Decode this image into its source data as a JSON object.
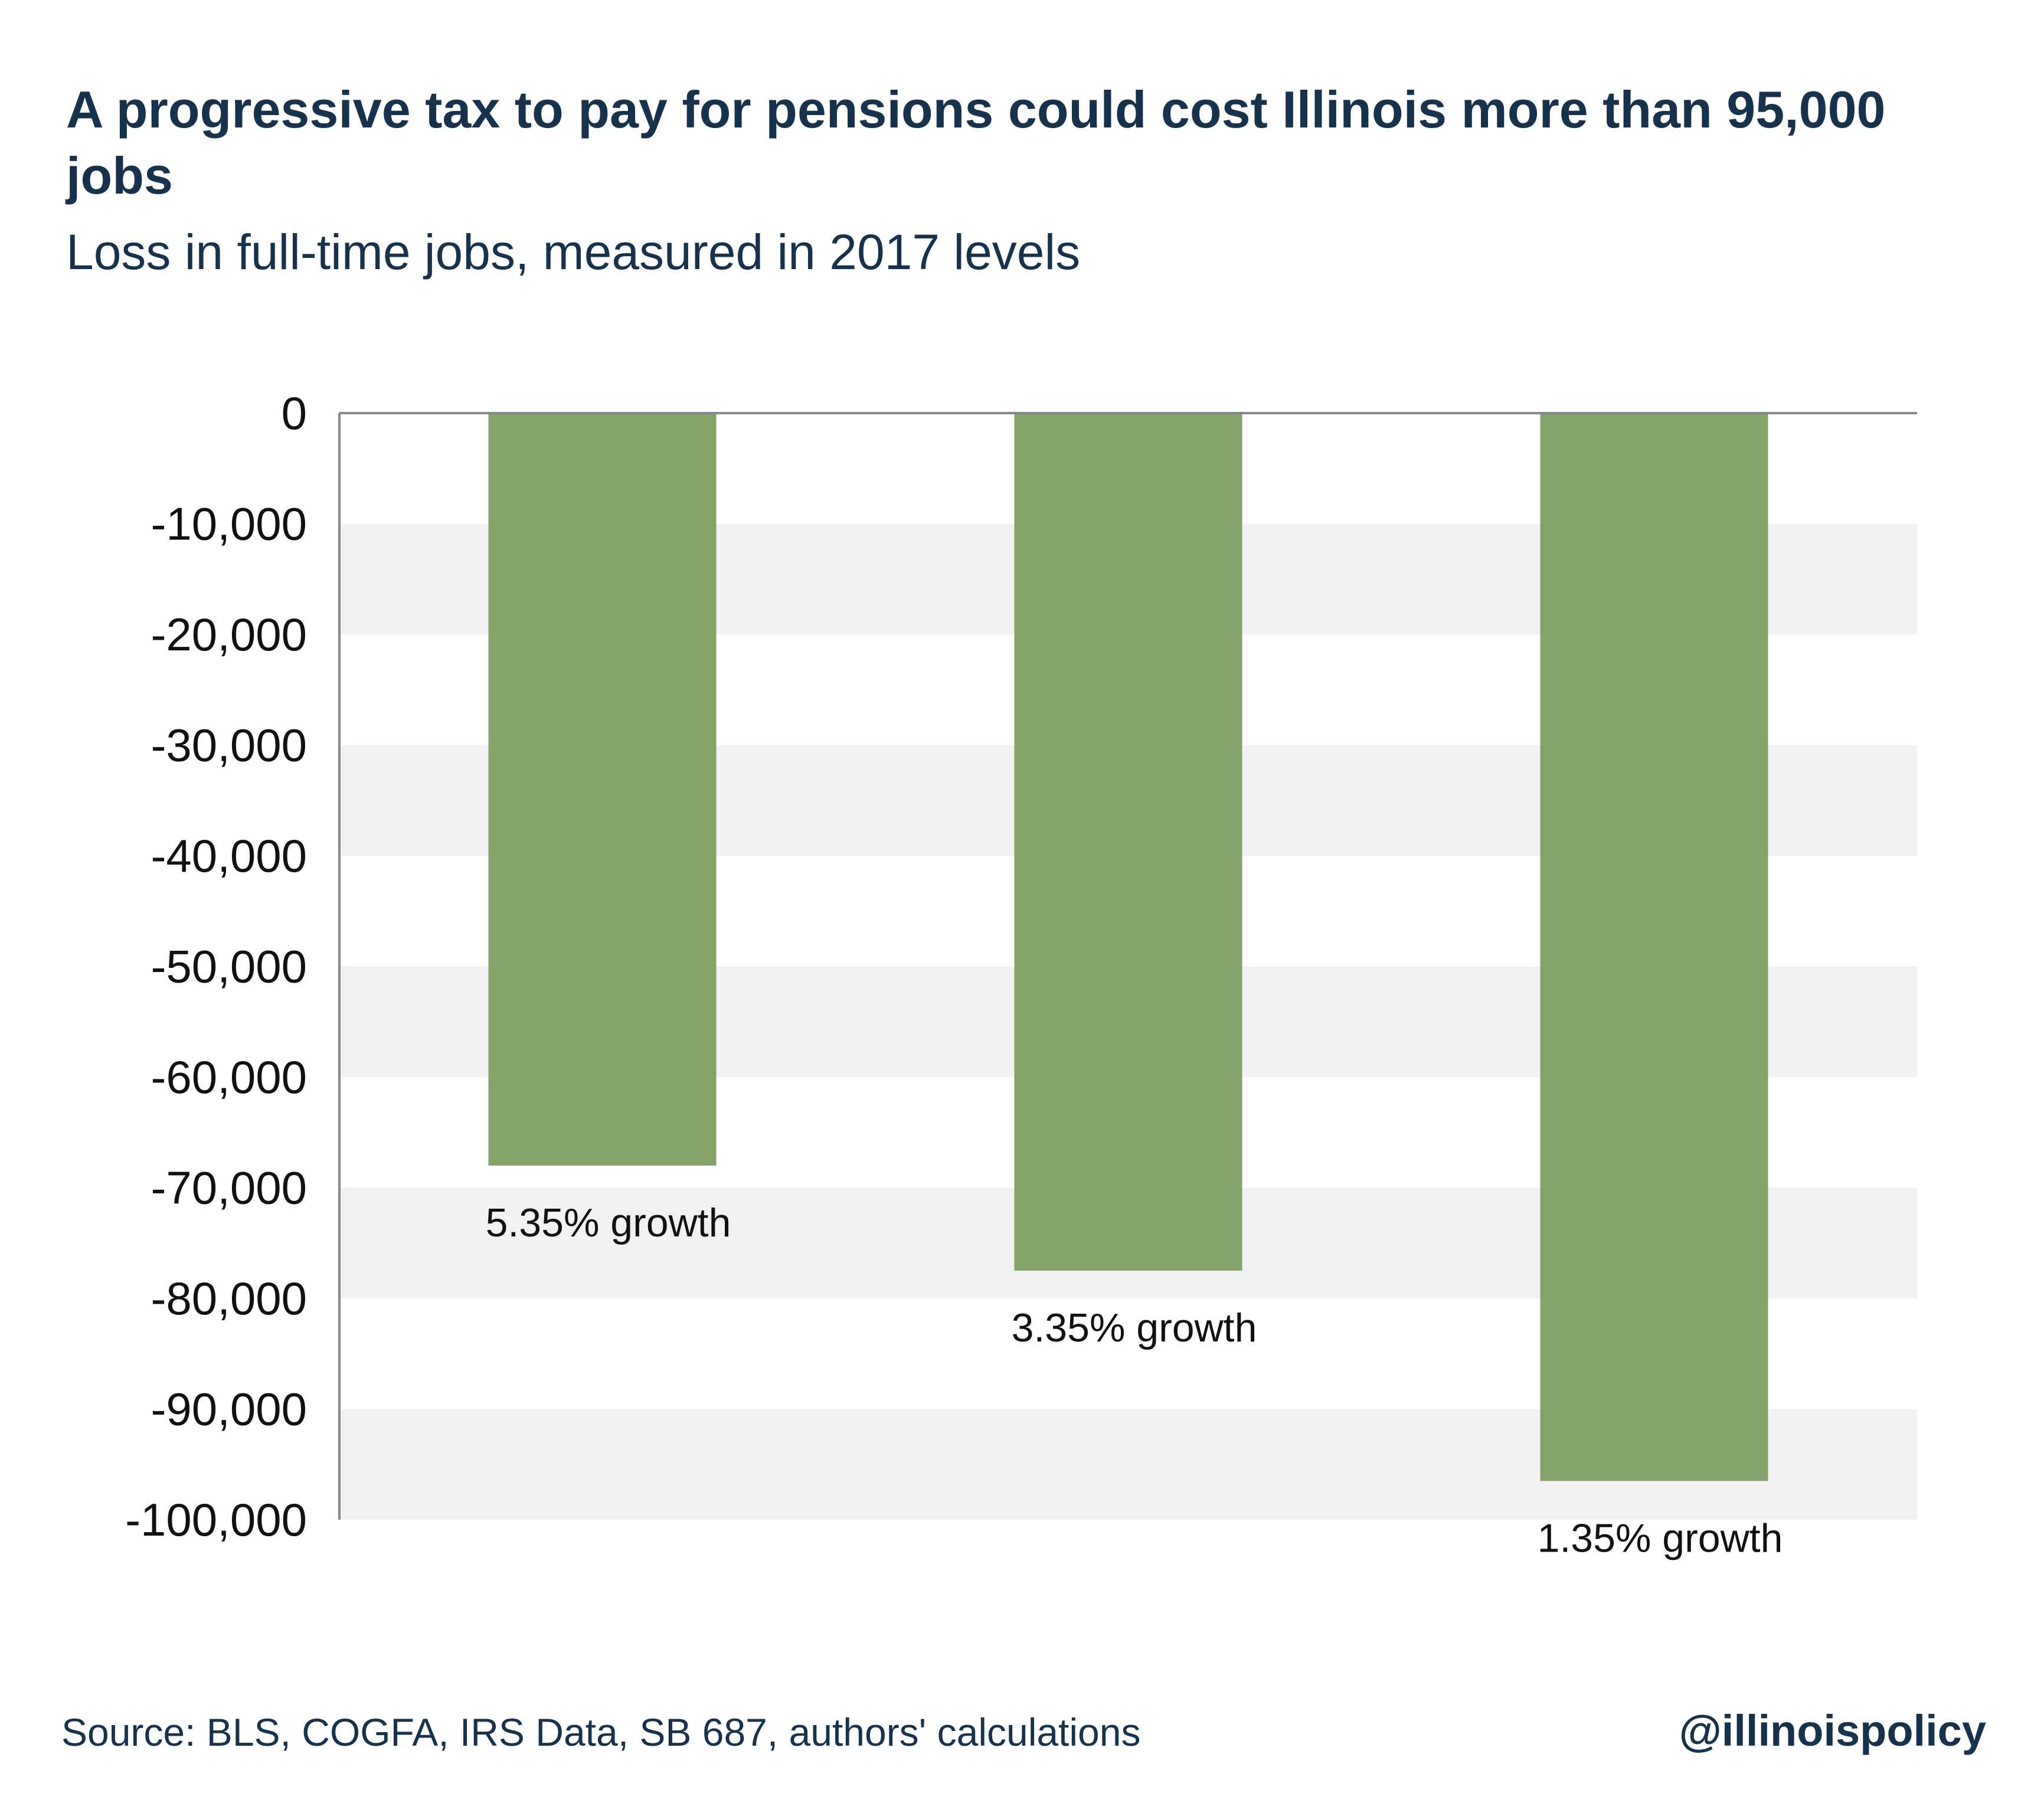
{
  "header": {
    "title": "A progressive tax to pay for pensions could cost Illinois more than 95,000 jobs",
    "subtitle": "Loss in full-time jobs, measured in 2017 levels"
  },
  "chart_data": {
    "type": "bar",
    "categories": [
      "5.35% growth",
      "3.35% growth",
      "1.35% growth"
    ],
    "values": [
      -68000,
      -77500,
      -96500
    ],
    "ylim": [
      -100000,
      0
    ],
    "yticks": [
      0,
      -10000,
      -20000,
      -30000,
      -40000,
      -50000,
      -60000,
      -70000,
      -80000,
      -90000,
      -100000
    ],
    "ytick_labels": [
      "0",
      "-10,000",
      "-20,000",
      "-30,000",
      "-40,000",
      "-50,000",
      "-60,000",
      "-70,000",
      "-80,000",
      "-90,000",
      "-100,000"
    ],
    "title": "A progressive tax to pay for pensions could cost Illinois more than 95,000 jobs",
    "subtitle": "Loss in full-time jobs, measured in 2017 levels",
    "xlabel": "",
    "ylabel": "",
    "grid": "alternating horizontal bands",
    "legend": "none",
    "colors": {
      "bar": "#84a368",
      "band": "#f1f1f1",
      "axis": "#888888",
      "text": "#17324d"
    }
  },
  "footer": {
    "source": "Source:  BLS, COGFA, IRS Data, SB 687, authors' calculations",
    "handle": "@illinoispolicy"
  }
}
